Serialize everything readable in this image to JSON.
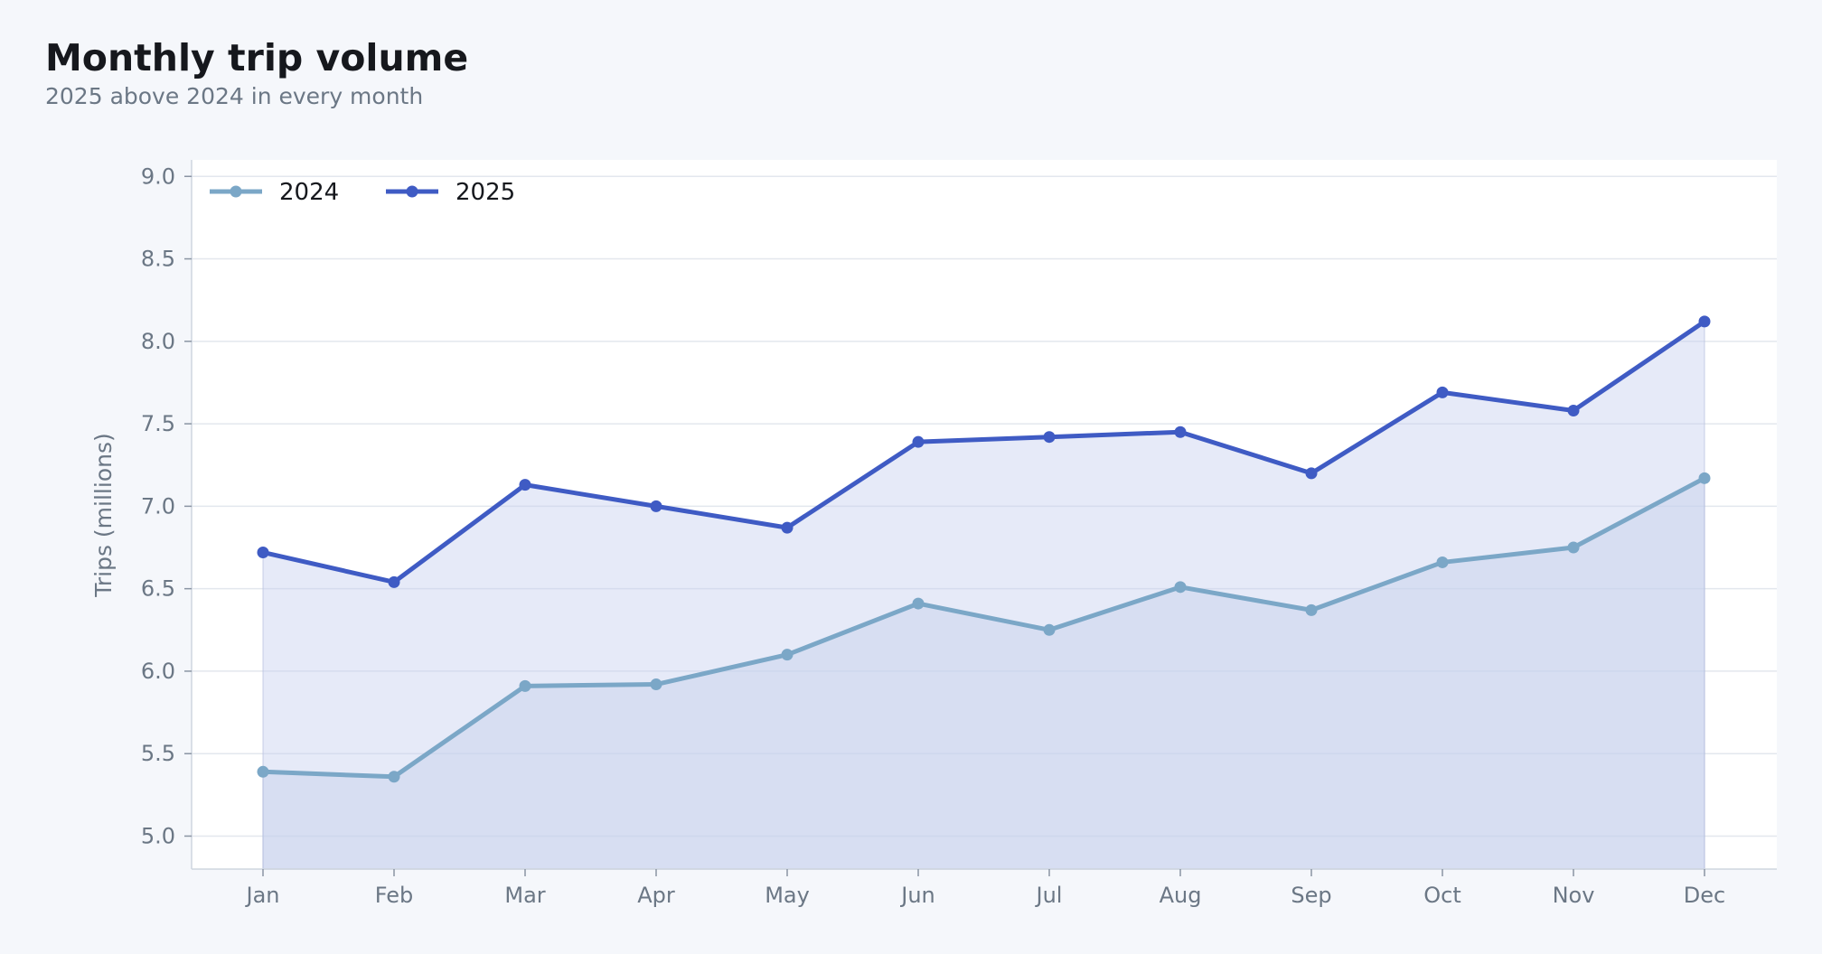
{
  "header": {
    "title": "Monthly trip volume",
    "subtitle": "2025 above 2024 in every month"
  },
  "chart_data": {
    "type": "area",
    "title": "Monthly trip volume",
    "subtitle": "2025 above 2024 in every month",
    "xlabel": "",
    "ylabel": "Trips (millions)",
    "categories": [
      "Jan",
      "Feb",
      "Mar",
      "Apr",
      "May",
      "Jun",
      "Jul",
      "Aug",
      "Sep",
      "Oct",
      "Nov",
      "Dec"
    ],
    "ylim": [
      4.8,
      9.1
    ],
    "yticks": [
      "5.0",
      "5.5",
      "6.0",
      "6.5",
      "7.0",
      "7.5",
      "8.0",
      "8.5",
      "9.0"
    ],
    "grid": true,
    "legend": "top-left",
    "series": [
      {
        "name": "2024",
        "color": "#7ba7c7",
        "values": [
          5.39,
          5.36,
          5.91,
          5.92,
          6.1,
          6.41,
          6.25,
          6.51,
          6.37,
          6.66,
          6.75,
          7.17
        ]
      },
      {
        "name": "2025",
        "color": "#3f5bc4",
        "values": [
          6.72,
          6.54,
          7.13,
          7.0,
          6.87,
          7.39,
          7.42,
          7.45,
          7.2,
          7.69,
          7.58,
          8.12
        ]
      }
    ]
  }
}
